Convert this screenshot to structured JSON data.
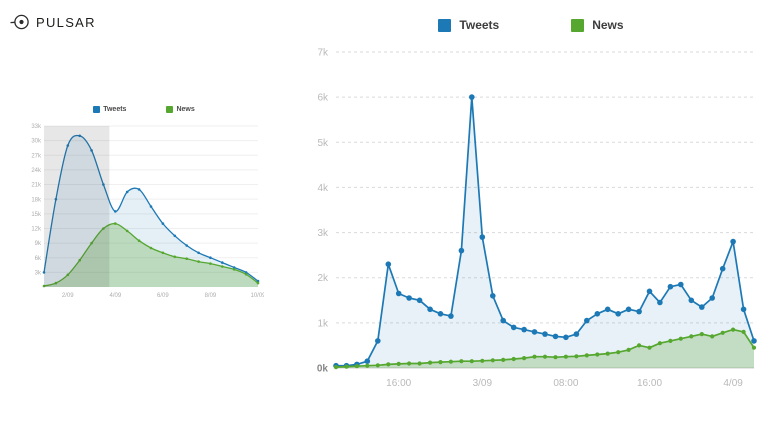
{
  "brand": {
    "name": "PULSAR"
  },
  "chart_data": [
    {
      "id": "overview",
      "type": "area",
      "title": "",
      "x": [
        1,
        1.5,
        2,
        2.5,
        3,
        3.5,
        4,
        4.5,
        5,
        5.5,
        6,
        6.5,
        7,
        7.5,
        8,
        8.5,
        9,
        9.5,
        10
      ],
      "series": [
        {
          "name": "Tweets",
          "color": "#1d79b5",
          "fill": "rgba(29,121,181,0.12)",
          "marker_r": 1.3,
          "values": [
            3,
            18,
            29,
            31,
            28,
            21,
            15.5,
            19.5,
            20,
            16.5,
            13,
            10.5,
            8.5,
            7,
            6,
            5,
            4,
            3,
            1.2
          ]
        },
        {
          "name": "News",
          "color": "#55a72f",
          "fill": "rgba(85,167,47,0.28)",
          "marker_r": 1.3,
          "values": [
            0.2,
            0.8,
            2.5,
            5.5,
            9,
            12,
            13,
            11.5,
            9.5,
            8,
            7,
            6.2,
            5.8,
            5.2,
            4.8,
            4.2,
            3.6,
            2.6,
            0.8
          ]
        }
      ],
      "ylim": [
        0,
        33
      ],
      "y_ticks": [
        3,
        6,
        9,
        12,
        15,
        18,
        21,
        24,
        27,
        30,
        33
      ],
      "y_tick_labels": [
        "3k",
        "6k",
        "9k",
        "12k",
        "15k",
        "18k",
        "21k",
        "24k",
        "27k",
        "30k",
        "33k"
      ],
      "x_tick_positions": [
        2,
        4,
        6,
        8,
        10
      ],
      "x_tick_labels": [
        "2/09",
        "4/09",
        "6/09",
        "8/09",
        "10/09"
      ],
      "selection": {
        "from": 1,
        "to": 3.75
      },
      "legend_position": "top",
      "grid": true
    },
    {
      "id": "detail",
      "type": "line-area",
      "title": "",
      "x": [
        0,
        1,
        2,
        3,
        4,
        5,
        6,
        7,
        8,
        9,
        10,
        11,
        12,
        13,
        14,
        15,
        16,
        17,
        18,
        19,
        20,
        21,
        22,
        23,
        24,
        25,
        26,
        27,
        28,
        29,
        30,
        31,
        32,
        33,
        34,
        35,
        36,
        37,
        38,
        39,
        40
      ],
      "series": [
        {
          "name": "Tweets",
          "color": "#1d79b5",
          "fill": "rgba(29,121,181,0.10)",
          "marker_r": 2.8,
          "values": [
            0.05,
            0.05,
            0.08,
            0.15,
            0.6,
            2.3,
            1.65,
            1.55,
            1.5,
            1.3,
            1.2,
            1.15,
            2.6,
            6.0,
            2.9,
            1.6,
            1.05,
            0.9,
            0.85,
            0.8,
            0.75,
            0.7,
            0.68,
            0.75,
            1.05,
            1.2,
            1.3,
            1.2,
            1.3,
            1.25,
            1.7,
            1.45,
            1.8,
            1.85,
            1.5,
            1.35,
            1.55,
            2.2,
            2.8,
            1.3,
            0.6
          ]
        },
        {
          "name": "News",
          "color": "#55a72f",
          "fill": "rgba(85,167,47,0.26)",
          "marker_r": 2.1,
          "values": [
            0.02,
            0.03,
            0.04,
            0.05,
            0.06,
            0.08,
            0.09,
            0.1,
            0.1,
            0.12,
            0.13,
            0.14,
            0.15,
            0.15,
            0.16,
            0.17,
            0.18,
            0.2,
            0.22,
            0.25,
            0.25,
            0.24,
            0.25,
            0.26,
            0.28,
            0.3,
            0.32,
            0.35,
            0.4,
            0.5,
            0.45,
            0.55,
            0.6,
            0.65,
            0.7,
            0.75,
            0.7,
            0.78,
            0.85,
            0.8,
            0.45
          ]
        }
      ],
      "ylim": [
        0,
        7
      ],
      "y_ticks": [
        0,
        1,
        2,
        3,
        4,
        5,
        6,
        7
      ],
      "y_tick_labels": [
        "0k",
        "1k",
        "2k",
        "3k",
        "4k",
        "5k",
        "6k",
        "7k"
      ],
      "x_tick_positions": [
        6,
        14,
        22,
        30,
        38
      ],
      "x_tick_labels": [
        "16:00",
        "3/09",
        "08:00",
        "16:00",
        "4/09"
      ],
      "legend_position": "top",
      "grid": "dashed-horizontal"
    }
  ]
}
